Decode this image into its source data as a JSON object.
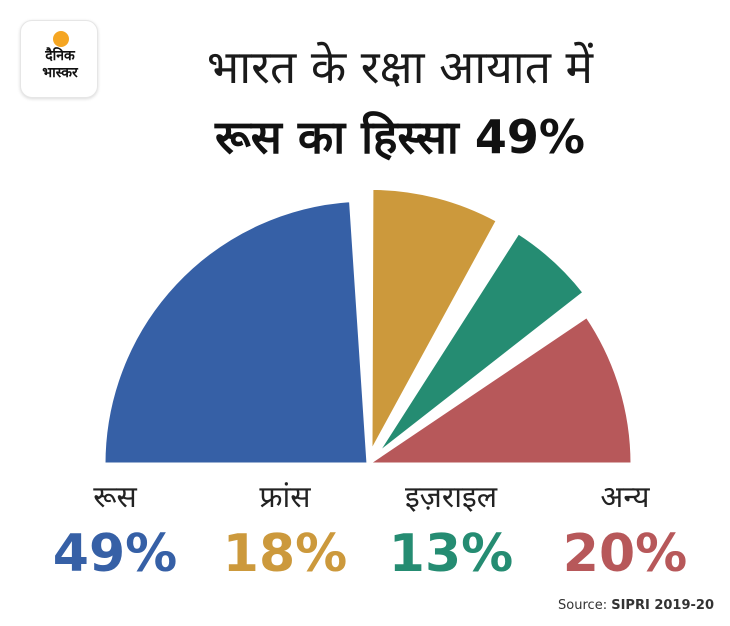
{
  "logo": {
    "line1": "दैनिक",
    "line2": "भास्कर",
    "sun_color": "#f5a623"
  },
  "title": {
    "line1": "भारत के रक्षा आयात में",
    "line2": "रूस का हिस्सा 49%"
  },
  "chart_data": {
    "type": "pie",
    "variant": "semicircle",
    "categories": [
      "रूस",
      "फ्रांस",
      "इज़राइल",
      "अन्य"
    ],
    "values": [
      49,
      18,
      13,
      20
    ],
    "labels": [
      "49%",
      "18%",
      "13%",
      "20%"
    ],
    "colors": [
      "#3660a6",
      "#cc993c",
      "#258c72",
      "#b7585a"
    ],
    "exploded": [
      false,
      true,
      true,
      false
    ]
  },
  "source": {
    "prefix": "Source:",
    "name": "SIPRI 2019-20"
  }
}
